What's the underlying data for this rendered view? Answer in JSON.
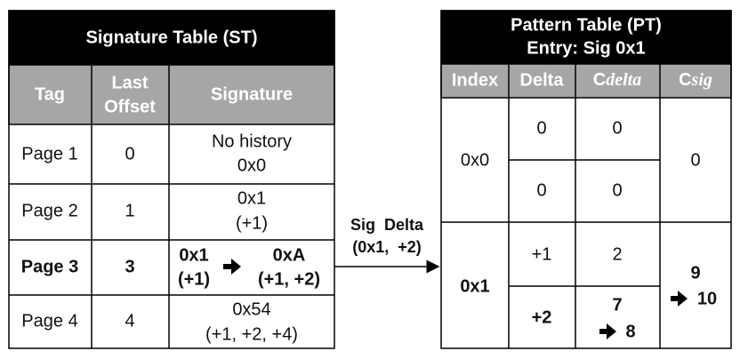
{
  "signature_table": {
    "title": "Signature Table (ST)",
    "headers": [
      [
        "Tag"
      ],
      [
        "Last",
        "Offset"
      ],
      [
        "Signature"
      ]
    ],
    "rows": [
      {
        "tag": "Page 1",
        "last_offset": 0,
        "signature": [
          "No history",
          "0x0"
        ]
      },
      {
        "tag": "Page 2",
        "last_offset": 1,
        "signature": [
          "0x1",
          "(+1)"
        ]
      },
      {
        "tag": "Page 3",
        "last_offset": 3,
        "signature_old": [
          "0x1",
          "(+1)"
        ],
        "signature_new": [
          "0xA",
          "(+1, +2)"
        ]
      },
      {
        "tag": "Page 4",
        "last_offset": 4,
        "signature": [
          "0x54",
          "(+1, +2, +4)"
        ]
      }
    ]
  },
  "connector": {
    "label": [
      "Sig  Delta",
      "(0x1,  +2)"
    ]
  },
  "pattern_table": {
    "title": [
      "Pattern Table (PT)",
      "Entry: Sig 0x1"
    ],
    "headers": [
      "Index",
      "Delta",
      [
        "C",
        "delta"
      ],
      [
        "C",
        "sig"
      ]
    ],
    "entries": [
      {
        "index": "0x0",
        "deltas": [
          {
            "delta": 0,
            "c_delta": 0
          },
          {
            "delta": 0,
            "c_delta": 0
          }
        ],
        "c_sig": 0
      },
      {
        "index": "0x1",
        "deltas": [
          {
            "delta": "+1",
            "c_delta": 2
          },
          {
            "delta": "+2",
            "c_delta": {
              "old": 7,
              "new": 8
            }
          }
        ],
        "c_sig": {
          "old": 9,
          "new": 10
        }
      }
    ]
  }
}
